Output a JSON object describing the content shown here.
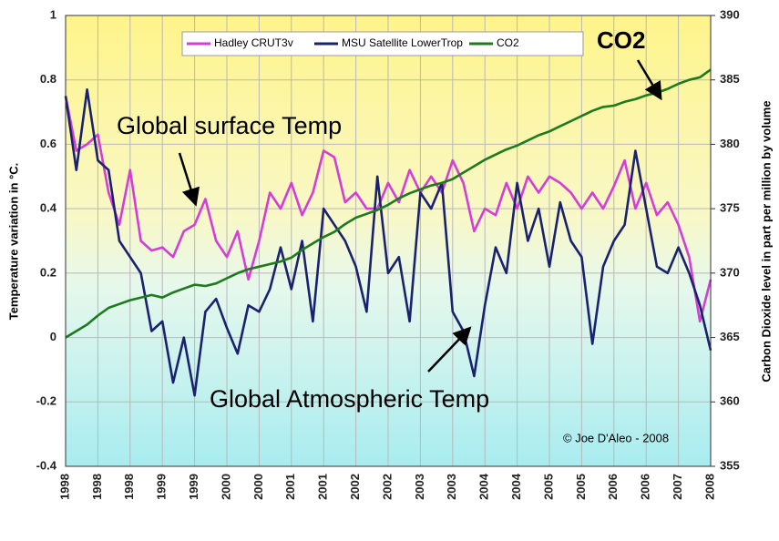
{
  "chart_data": {
    "type": "line",
    "legend": "top",
    "grid": true,
    "ylabel": "Temperature variation in °C.",
    "y2label": "Carbon Dioxide level in part per million by volume",
    "ylim": [
      -0.4,
      1
    ],
    "yticks": [
      -0.4,
      -0.2,
      0,
      0.2,
      0.4,
      0.6,
      0.8,
      1
    ],
    "y2lim": [
      355,
      390
    ],
    "y2ticks": [
      355,
      360,
      365,
      370,
      375,
      380,
      385,
      390
    ],
    "annotations": [
      "CO2",
      "Global surface Temp",
      "Global Atmospheric Temp",
      "© Joe D'Aleo - 2008"
    ],
    "categories": [
      "1998",
      null,
      null,
      "1998",
      null,
      null,
      "1998",
      null,
      null,
      "1999",
      null,
      null,
      "1999",
      null,
      null,
      "2000",
      null,
      null,
      "2000",
      null,
      null,
      "2001",
      null,
      null,
      "2001",
      null,
      null,
      "2002",
      null,
      null,
      "2002",
      null,
      null,
      "2003",
      null,
      null,
      "2003",
      null,
      null,
      "2004",
      null,
      null,
      "2004",
      null,
      null,
      "2005",
      null,
      null,
      "2005",
      null,
      null,
      "2006",
      null,
      null,
      "2006",
      null,
      null,
      "2007",
      null,
      null,
      "2008"
    ],
    "series": [
      {
        "name": "Hadley CRUT3v",
        "color": "#d63cd6",
        "values": [
          0.75,
          0.58,
          0.6,
          0.63,
          0.45,
          0.35,
          0.52,
          0.3,
          0.27,
          0.28,
          0.25,
          0.33,
          0.35,
          0.43,
          0.3,
          0.25,
          0.33,
          0.18,
          0.3,
          0.45,
          0.4,
          0.48,
          0.38,
          0.45,
          0.58,
          0.56,
          0.42,
          0.45,
          0.4,
          0.4,
          0.48,
          0.42,
          0.52,
          0.45,
          0.5,
          0.45,
          0.55,
          0.48,
          0.33,
          0.4,
          0.38,
          0.48,
          0.4,
          0.5,
          0.45,
          0.5,
          0.48,
          0.45,
          0.4,
          0.45,
          0.4,
          0.47,
          0.55,
          0.4,
          0.48,
          0.38,
          0.42,
          0.35,
          0.25,
          0.05,
          0.18
        ]
      },
      {
        "name": "MSU Satellite LowerTrop",
        "color": "#1a2270",
        "values": [
          0.75,
          0.52,
          0.77,
          0.55,
          0.52,
          0.3,
          0.25,
          0.2,
          0.02,
          0.05,
          -0.14,
          0.0,
          -0.18,
          0.08,
          0.12,
          0.03,
          -0.05,
          0.1,
          0.08,
          0.15,
          0.28,
          0.15,
          0.3,
          0.05,
          0.4,
          0.35,
          0.3,
          0.22,
          0.08,
          0.5,
          0.2,
          0.25,
          0.05,
          0.45,
          0.4,
          0.48,
          0.08,
          0.02,
          -0.12,
          0.1,
          0.28,
          0.2,
          0.48,
          0.3,
          0.4,
          0.22,
          0.42,
          0.3,
          0.25,
          -0.02,
          0.22,
          0.3,
          0.35,
          0.58,
          0.4,
          0.22,
          0.2,
          0.28,
          0.2,
          0.1,
          -0.04
        ]
      },
      {
        "name": "CO2",
        "color": "#1d7a1d",
        "axis": "y2",
        "values": [
          365.0,
          365.5,
          366.0,
          366.7,
          367.3,
          367.6,
          367.9,
          368.1,
          368.3,
          368.1,
          368.5,
          368.8,
          369.1,
          369.0,
          369.2,
          369.6,
          370.0,
          370.3,
          370.5,
          370.7,
          370.9,
          371.2,
          371.8,
          372.3,
          372.8,
          373.2,
          373.8,
          374.3,
          374.6,
          374.9,
          375.3,
          375.8,
          376.2,
          376.5,
          376.8,
          377.0,
          377.3,
          377.8,
          378.3,
          378.8,
          379.2,
          379.6,
          379.9,
          380.3,
          380.7,
          381.0,
          381.4,
          381.8,
          382.2,
          382.6,
          382.9,
          383.0,
          383.3,
          383.5,
          383.8,
          384.0,
          384.3,
          384.7,
          385.0,
          385.2,
          385.8
        ]
      }
    ]
  }
}
